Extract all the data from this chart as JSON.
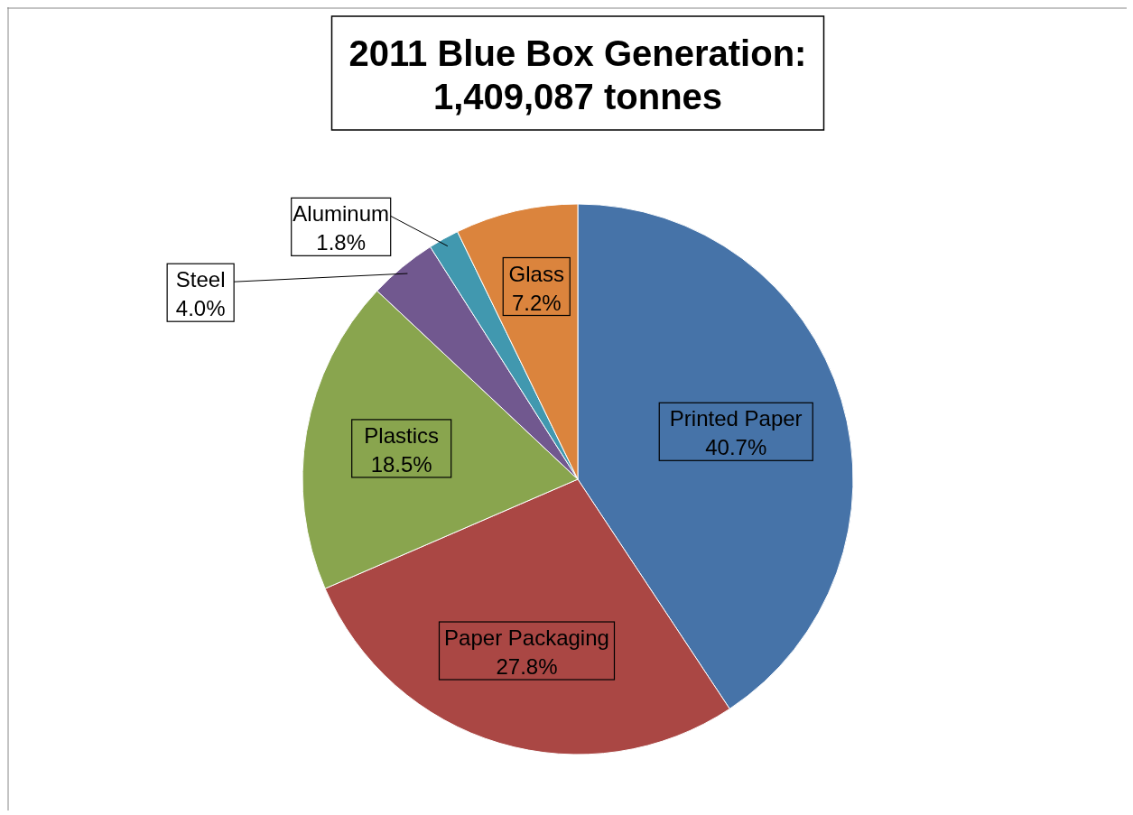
{
  "chart_data": {
    "type": "pie",
    "title": "2011 Blue Box Generation:",
    "subtitle": "1,409,087 tonnes",
    "categories": [
      "Printed Paper",
      "Paper Packaging",
      "Plastics",
      "Steel",
      "Aluminum",
      "Glass"
    ],
    "values": [
      40.7,
      27.8,
      18.5,
      4.0,
      1.8,
      7.2
    ],
    "colors": [
      "#4673a8",
      "#aa4744",
      "#89a54e",
      "#71588f",
      "#4198af",
      "#db843d"
    ],
    "value_labels": [
      "40.7%",
      "27.8%",
      "18.5%",
      "4.0%",
      "1.8%",
      "7.2%"
    ],
    "legend": false
  }
}
